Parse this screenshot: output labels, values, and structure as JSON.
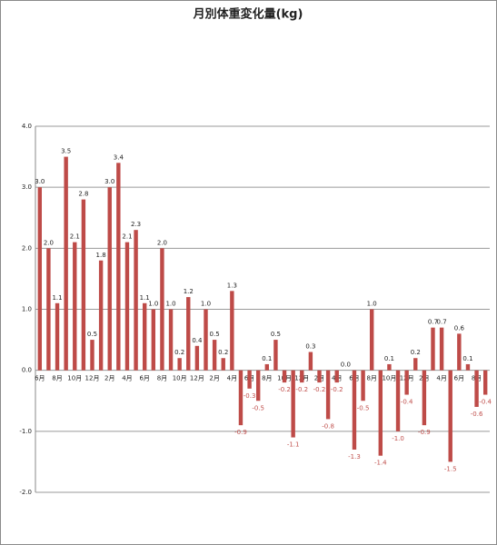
{
  "chart_data": {
    "type": "bar",
    "title": "月別体重変化量(kg)",
    "categories": [
      "6月",
      null,
      "8月",
      null,
      "10月",
      null,
      "12月",
      null,
      "2月",
      null,
      "4月",
      null,
      "6月",
      null,
      "8月",
      null,
      "10月",
      null,
      "12月",
      null,
      "2月",
      null,
      "4月",
      null,
      "6月",
      null,
      "8月",
      null,
      "10月",
      null,
      "12月",
      null,
      "2月",
      null,
      "4月",
      null,
      "6月",
      null,
      "8月",
      null,
      "10月",
      null,
      "12月",
      null,
      "2月",
      null,
      "4月",
      null,
      "6月",
      null,
      "8月",
      null
    ],
    "values": [
      3.0,
      2.0,
      1.1,
      3.5,
      2.1,
      2.8,
      0.5,
      1.8,
      3.0,
      3.4,
      2.1,
      2.3,
      1.1,
      1.0,
      2.0,
      1.0,
      0.2,
      1.2,
      0.4,
      1.0,
      0.5,
      0.2,
      1.3,
      -0.9,
      -0.3,
      -0.5,
      0.1,
      0.5,
      -0.2,
      -1.1,
      -0.2,
      0.3,
      -0.2,
      -0.8,
      -0.2,
      0.0,
      -1.3,
      -0.5,
      1.0,
      -1.4,
      0.1,
      -1.0,
      -0.4,
      0.2,
      -0.9,
      0.7,
      0.7,
      -1.5,
      0.6,
      0.1,
      -0.6,
      -0.4
    ],
    "value_labels": [
      "3.0",
      "2.0",
      "1.1",
      "3.5",
      "2.1",
      "2.8",
      "0.5",
      "1.8",
      "3.0",
      "3.4",
      "2.1",
      "2.3",
      "1.1",
      "1.0",
      "2.0",
      "1.0",
      "0.2",
      "1.2",
      "0.4",
      "1.0",
      "0.5",
      "0.2",
      "1.3",
      "-0.9",
      "-0.3",
      "-0.5",
      "0.1",
      "0.5",
      "-0.2",
      "-1.1",
      "-0.2",
      "0.3",
      "-0.2",
      "-0.8",
      "-0.2",
      "0.0",
      "-1.3",
      "-0.5",
      "1.0",
      "-1.4",
      "0.1",
      "-1.0",
      "-0.4",
      "0.2",
      "-0.9",
      "0.7",
      "0.7",
      "-1.5",
      "0.6",
      "0.1",
      "-0.6",
      "-0.4"
    ],
    "color": "#be4b48",
    "negative_label_color": "#c0504d",
    "ylim": [
      -2.0,
      4.0
    ],
    "yticks": [
      {
        "value": -2,
        "label": "-2.0"
      },
      {
        "value": -1,
        "label": "-1.0"
      },
      {
        "value": 0,
        "label": "0.0"
      },
      {
        "value": 1,
        "label": "1.0"
      },
      {
        "value": 2,
        "label": "2.0"
      },
      {
        "value": 3,
        "label": "3.0"
      },
      {
        "value": 4,
        "label": "4.0"
      }
    ],
    "grid": true
  }
}
